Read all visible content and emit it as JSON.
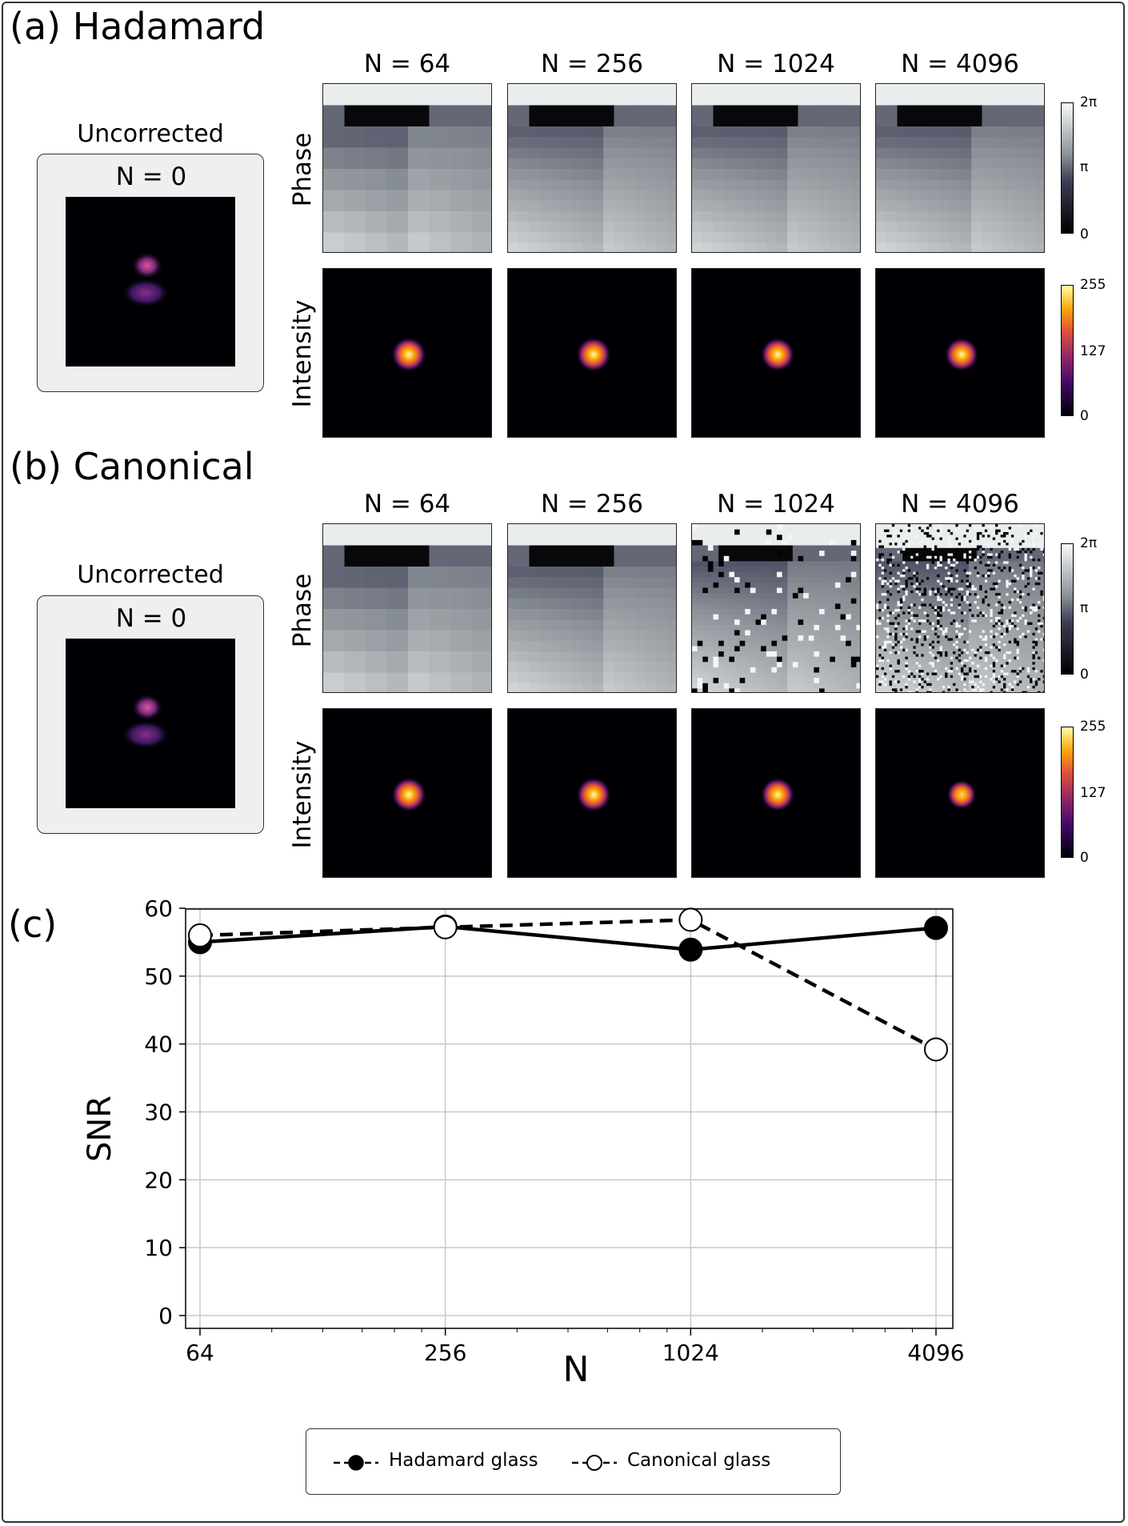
{
  "panels": {
    "a": {
      "title": "(a) Hadamard",
      "uncorrected_label": "Uncorrected",
      "uncorrected_n": "N = 0",
      "column_titles": [
        "N = 64",
        "N = 256",
        "N = 1024",
        "N = 4096"
      ],
      "phase_label": "Phase",
      "intensity_label": "Intensity",
      "phase_colorbar_ticks": [
        "2π",
        "π",
        "0"
      ],
      "intensity_colorbar_ticks": [
        "255",
        "127",
        "0"
      ]
    },
    "b": {
      "title": "(b) Canonical",
      "uncorrected_label": "Uncorrected",
      "uncorrected_n": "N = 0",
      "column_titles": [
        "N = 64",
        "N = 256",
        "N = 1024",
        "N = 4096"
      ],
      "phase_label": "Phase",
      "intensity_label": "Intensity",
      "phase_colorbar_ticks": [
        "2π",
        "π",
        "0"
      ],
      "intensity_colorbar_ticks": [
        "255",
        "127",
        "0"
      ]
    },
    "c": {
      "title": "(c)"
    }
  },
  "colors": {
    "phase_dark": "#000000",
    "phase_mid": "#4a4a5e",
    "phase_light": "#f4f8f8",
    "intensity_bg": "#000004",
    "intensity_peak": "#fcffa4"
  },
  "chart_data": {
    "type": "line",
    "xscale": "log2",
    "x": [
      64,
      256,
      1024,
      4096
    ],
    "xticklabels": [
      "64",
      "256",
      "1024",
      "4096"
    ],
    "xlabel": "N",
    "ylabel": "SNR",
    "ylim": [
      0,
      60
    ],
    "yticks": [
      0,
      10,
      20,
      30,
      40,
      50,
      60
    ],
    "grid": true,
    "legend_position": "bottom-center",
    "series": [
      {
        "name": "Hadamard glass",
        "values": [
          55.0,
          57.3,
          53.9,
          57.1
        ],
        "marker": "filled-circle",
        "line": "solid",
        "legend_line": "dashed"
      },
      {
        "name": "Canonical glass",
        "values": [
          56.0,
          57.2,
          58.3,
          39.2
        ],
        "marker": "open-circle",
        "line": "dashed",
        "legend_line": "dashed"
      }
    ]
  }
}
